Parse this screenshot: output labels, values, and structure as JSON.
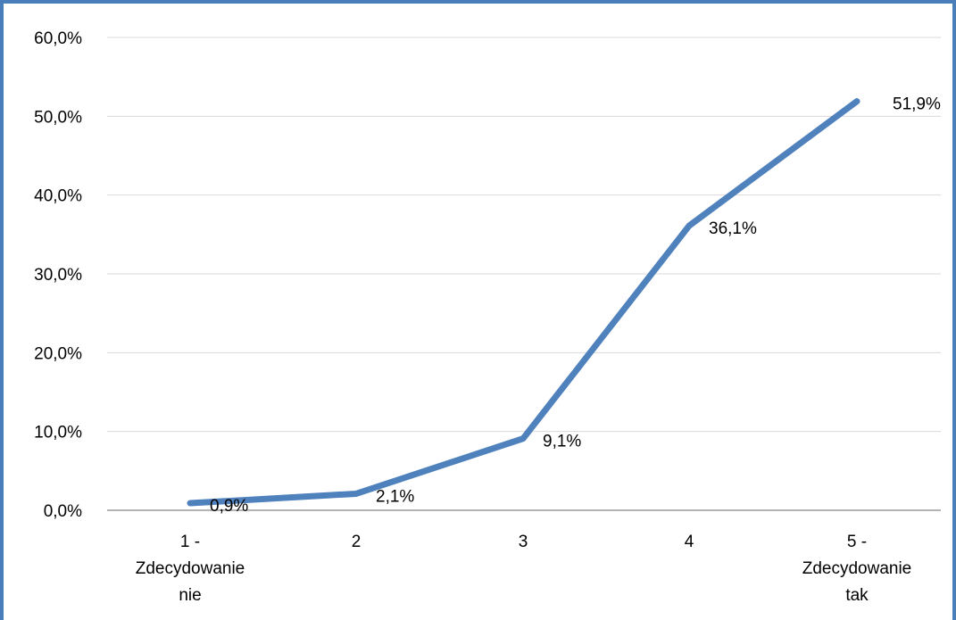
{
  "chart_data": {
    "type": "line",
    "categories": [
      [
        "1 -",
        "Zdecydowanie",
        "nie"
      ],
      [
        "2"
      ],
      [
        "3"
      ],
      [
        "4"
      ],
      [
        "5 -",
        "Zdecydowanie",
        "tak"
      ]
    ],
    "series": [
      {
        "values": [
          0.9,
          2.1,
          9.1,
          36.1,
          51.9
        ],
        "data_labels": [
          "0,9%",
          "2,1%",
          "9,1%",
          "36,1%",
          "51,9%"
        ],
        "color": "#4f81bd"
      }
    ],
    "y_ticks": [
      0,
      10,
      20,
      30,
      40,
      50,
      60
    ],
    "y_tick_labels": [
      "0,0%",
      "10,0%",
      "20,0%",
      "30,0%",
      "40,0%",
      "50,0%",
      "60,0%"
    ],
    "ylim": [
      0,
      60
    ],
    "grid": true,
    "legend": "none",
    "title": "",
    "xlabel": "",
    "ylabel": ""
  }
}
